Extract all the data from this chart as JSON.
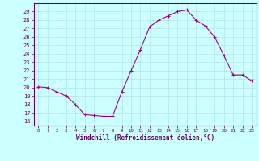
{
  "hours": [
    0,
    1,
    2,
    3,
    4,
    5,
    6,
    7,
    8,
    9,
    10,
    11,
    12,
    13,
    14,
    15,
    16,
    17,
    18,
    19,
    20,
    21,
    22,
    23
  ],
  "windchill": [
    20.1,
    20.0,
    19.5,
    19.0,
    18.0,
    16.8,
    16.7,
    16.6,
    16.6,
    19.5,
    22.0,
    24.5,
    27.2,
    28.0,
    28.5,
    29.0,
    29.2,
    28.0,
    27.3,
    26.0,
    23.8,
    21.5,
    21.5,
    20.8
  ],
  "line_color": "#990099",
  "marker": "+",
  "bg_color": "#ccffff",
  "grid_color": "#aadddd",
  "axis_color": "#660066",
  "ylabel_ticks": [
    16,
    17,
    18,
    19,
    20,
    21,
    22,
    23,
    24,
    25,
    26,
    27,
    28,
    29
  ],
  "ylim": [
    15.5,
    30.0
  ],
  "xlim": [
    -0.5,
    23.5
  ],
  "xlabel": "Windchill (Refroidissement éolien,°C)",
  "figwidth": 3.2,
  "figheight": 2.0,
  "dpi": 100
}
